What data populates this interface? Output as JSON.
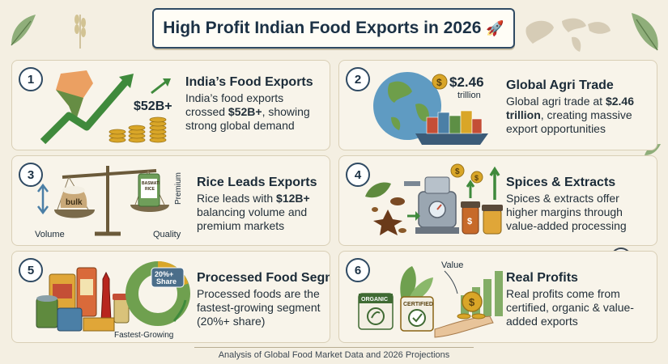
{
  "title": "High Profit Indian Food Exports in 2026",
  "footer": "Analysis of Global Food Market Data and 2026 Projections",
  "cards": [
    {
      "num": "1",
      "title": "India’s Food Exports",
      "desc_pre": "India’s food exports crossed ",
      "desc_bold": "$52B+",
      "desc_post": ", showing strong global demand",
      "art_label": "$52B+"
    },
    {
      "num": "2",
      "title": "Global Agri Trade",
      "desc_pre": "Global agri trade at ",
      "desc_bold": "$2.46 trillion",
      "desc_post": ", creating massive export opportunities",
      "art_label": "$2.46",
      "art_sub": "trillion"
    },
    {
      "num": "3",
      "title": "Rice Leads Exports",
      "desc_pre": "Rice leads with ",
      "desc_bold": "$12B+",
      "desc_post": " balancing volume and premium markets",
      "label_bulk": "bulk",
      "label_basmati": "BASMATI RICE",
      "label_volume": "Volume",
      "label_quality": "Quality",
      "label_premium": "Premium"
    },
    {
      "num": "4",
      "title": "Spices & Extracts",
      "desc_pre": "Spices & extracts offer higher margins through value-added processing",
      "desc_bold": "",
      "desc_post": ""
    },
    {
      "num": "5",
      "title": "Processed Food Segment",
      "desc_pre": "Processed foods are the fastest-growing segment (20%+ share)",
      "desc_bold": "",
      "desc_post": "",
      "art_share": "20%+ Share",
      "art_label": "Fastest-Growing"
    },
    {
      "num": "6",
      "title": "Real Profits",
      "desc_pre": "Real profits come from certified, organic & value-added exports",
      "desc_bold": "",
      "desc_post": "",
      "label_value": "Value",
      "label_organic": "ORGANIC",
      "label_certified": "CERTIFIED"
    }
  ],
  "colors": {
    "border": "#2f4a63",
    "accent_green": "#3f8a3c",
    "gold": "#d9a628",
    "saffron": "#e9914a"
  }
}
